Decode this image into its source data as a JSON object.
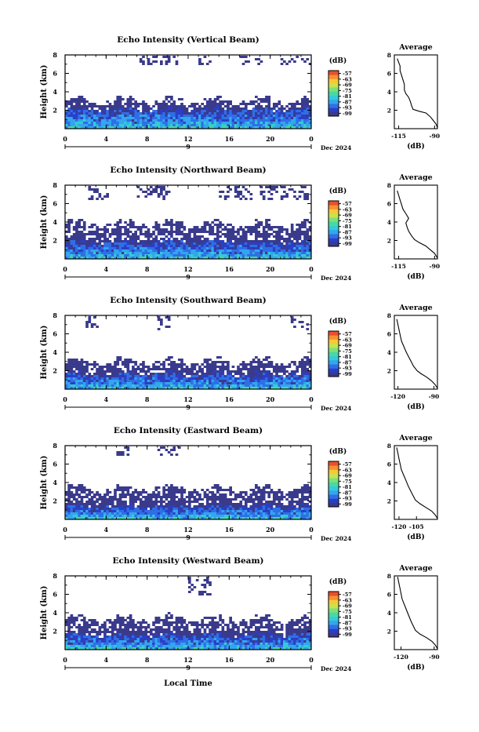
{
  "figure": {
    "x_axis_label": "Local Time",
    "colorbar_unit": "(dB)",
    "average_title": "Average",
    "average_xlabel": "(dB)"
  },
  "colors": {
    "colormap": [
      "#3a3a8c",
      "#2b3fc4",
      "#2f6fe6",
      "#33a6ee",
      "#33ccd6",
      "#49d8a3",
      "#7fe07a",
      "#c9e34b",
      "#f6c93a",
      "#f79131",
      "#e9502c"
    ],
    "trace": "#000000",
    "frame": "#000000"
  },
  "chart_data": [
    {
      "type": "heatmap",
      "title": "Echo Intensity (Vertical Beam)",
      "ylabel": "Height (km)",
      "xlim": [
        0,
        24
      ],
      "ylim": [
        0,
        8
      ],
      "x_ticks": [
        "0",
        "4",
        "8",
        "12",
        "16",
        "20",
        "0"
      ],
      "x_tick_values": [
        0,
        4,
        8,
        12,
        16,
        20,
        24
      ],
      "y_ticks": [
        "2",
        "4",
        "6",
        "8"
      ],
      "y_tick_values": [
        2,
        4,
        6,
        8
      ],
      "date_label": "9",
      "month_label": "Dec 2024",
      "colorbar": {
        "unit": "(dB)",
        "ticks": [
          "-57",
          "-63",
          "-69",
          "-75",
          "-81",
          "-87",
          "-93",
          "-99"
        ],
        "range": [
          -102,
          -54
        ]
      },
      "field": {
        "dense_top_km": 2.2,
        "sparse_top_km": 3.2,
        "cloud_ranges_km": [
          [
            6.9,
            8.0
          ]
        ],
        "cloud_hours": [
          [
            7,
            11
          ],
          [
            13,
            14
          ],
          [
            17,
            19
          ],
          [
            21,
            24
          ]
        ]
      },
      "average": {
        "title": "Average",
        "xlabel": "(dB)",
        "xlim": [
          -118,
          -88
        ],
        "ylim": [
          0,
          8
        ],
        "x_ticks": [
          "-115",
          "-90"
        ],
        "x_tick_values": [
          -115,
          -90
        ],
        "y_ticks": [
          "2",
          "4",
          "6",
          "8"
        ],
        "profile": [
          [
            -88,
            0.1
          ],
          [
            -89,
            0.5
          ],
          [
            -91,
            0.9
          ],
          [
            -93,
            1.3
          ],
          [
            -96,
            1.7
          ],
          [
            -101,
            1.9
          ],
          [
            -105,
            2.1
          ],
          [
            -106,
            2.5
          ],
          [
            -107,
            3.0
          ],
          [
            -108,
            3.4
          ],
          [
            -110,
            3.8
          ],
          [
            -111,
            4.2
          ],
          [
            -111,
            4.8
          ],
          [
            -112,
            5.3
          ],
          [
            -113,
            5.8
          ],
          [
            -114,
            6.3
          ],
          [
            -114,
            6.8
          ],
          [
            -115,
            7.2
          ],
          [
            -116,
            7.6
          ]
        ]
      }
    },
    {
      "type": "heatmap",
      "title": "Echo Intensity (Northward Beam)",
      "ylabel": "Height (km)",
      "xlim": [
        0,
        24
      ],
      "ylim": [
        0,
        8
      ],
      "x_ticks": [
        "0",
        "4",
        "8",
        "12",
        "16",
        "20",
        "0"
      ],
      "x_tick_values": [
        0,
        4,
        8,
        12,
        16,
        20,
        24
      ],
      "y_ticks": [
        "2",
        "4",
        "6",
        "8"
      ],
      "y_tick_values": [
        2,
        4,
        6,
        8
      ],
      "date_label": "9",
      "month_label": "Dec 2024",
      "colorbar": {
        "unit": "(dB)",
        "ticks": [
          "-57",
          "-63",
          "-69",
          "-75",
          "-81",
          "-87",
          "-93",
          "-99"
        ],
        "range": [
          -102,
          -54
        ]
      },
      "field": {
        "dense_top_km": 2.0,
        "sparse_top_km": 4.0,
        "cloud_ranges_km": [
          [
            6.5,
            8.0
          ]
        ],
        "cloud_hours": [
          [
            2,
            4
          ],
          [
            7,
            10
          ],
          [
            15,
            18
          ],
          [
            19,
            24
          ]
        ]
      },
      "average": {
        "title": "Average",
        "xlabel": "(dB)",
        "xlim": [
          -118,
          -88
        ],
        "ylim": [
          0,
          8
        ],
        "x_ticks": [
          "-115",
          "-90"
        ],
        "x_tick_values": [
          -115,
          -90
        ],
        "y_ticks": [
          "2",
          "4",
          "6",
          "8"
        ],
        "profile": [
          [
            -88,
            0.1
          ],
          [
            -90,
            0.6
          ],
          [
            -93,
            1.0
          ],
          [
            -96,
            1.4
          ],
          [
            -101,
            1.8
          ],
          [
            -104,
            2.1
          ],
          [
            -106,
            2.5
          ],
          [
            -108,
            3.0
          ],
          [
            -109,
            3.4
          ],
          [
            -110,
            3.9
          ],
          [
            -108,
            4.4
          ],
          [
            -110,
            4.9
          ],
          [
            -112,
            5.4
          ],
          [
            -113,
            5.9
          ],
          [
            -114,
            6.4
          ],
          [
            -115,
            6.9
          ],
          [
            -116,
            7.4
          ]
        ]
      }
    },
    {
      "type": "heatmap",
      "title": "Echo Intensity (Southward Beam)",
      "ylabel": "Height (km)",
      "xlim": [
        0,
        24
      ],
      "ylim": [
        0,
        8
      ],
      "x_ticks": [
        "0",
        "4",
        "8",
        "12",
        "16",
        "20",
        "0"
      ],
      "x_tick_values": [
        0,
        4,
        8,
        12,
        16,
        20,
        24
      ],
      "y_ticks": [
        "2",
        "4",
        "6",
        "8"
      ],
      "y_tick_values": [
        2,
        4,
        6,
        8
      ],
      "date_label": "9",
      "month_label": "Dec 2024",
      "colorbar": {
        "unit": "(dB)",
        "ticks": [
          "-57",
          "-63",
          "-69",
          "-75",
          "-81",
          "-87",
          "-93",
          "-99"
        ],
        "range": [
          -102,
          -54
        ]
      },
      "field": {
        "dense_top_km": 1.8,
        "sparse_top_km": 3.2,
        "cloud_ranges_km": [
          [
            6.6,
            8.0
          ]
        ],
        "cloud_hours": [
          [
            2,
            3
          ],
          [
            9,
            10
          ],
          [
            22,
            24
          ]
        ]
      },
      "average": {
        "title": "Average",
        "xlabel": "(dB)",
        "xlim": [
          -123,
          -87
        ],
        "ylim": [
          0,
          8
        ],
        "x_ticks": [
          "-120",
          "-90"
        ],
        "x_tick_values": [
          -120,
          -90
        ],
        "y_ticks": [
          "2",
          "4",
          "6",
          "8"
        ],
        "profile": [
          [
            -87,
            0.1
          ],
          [
            -89,
            0.5
          ],
          [
            -92,
            0.9
          ],
          [
            -96,
            1.3
          ],
          [
            -101,
            1.7
          ],
          [
            -104,
            2.0
          ],
          [
            -107,
            2.5
          ],
          [
            -109,
            3.0
          ],
          [
            -111,
            3.5
          ],
          [
            -113,
            4.0
          ],
          [
            -115,
            4.6
          ],
          [
            -117,
            5.2
          ],
          [
            -118,
            5.8
          ],
          [
            -119,
            6.4
          ],
          [
            -120,
            7.0
          ],
          [
            -121,
            7.6
          ]
        ]
      }
    },
    {
      "type": "heatmap",
      "title": "Echo Intensity (Eastward Beam)",
      "ylabel": "Height (km)",
      "xlim": [
        0,
        24
      ],
      "ylim": [
        0,
        8
      ],
      "x_ticks": [
        "0",
        "4",
        "8",
        "12",
        "16",
        "20",
        "0"
      ],
      "x_tick_values": [
        0,
        4,
        8,
        12,
        16,
        20,
        24
      ],
      "y_ticks": [
        "2",
        "4",
        "6",
        "8"
      ],
      "y_tick_values": [
        2,
        4,
        6,
        8
      ],
      "date_label": "9",
      "month_label": "Dec 2024",
      "colorbar": {
        "unit": "(dB)",
        "ticks": [
          "-57",
          "-63",
          "-69",
          "-75",
          "-81",
          "-87",
          "-93",
          "-99"
        ],
        "range": [
          -102,
          -54
        ]
      },
      "field": {
        "dense_top_km": 1.6,
        "sparse_top_km": 3.5,
        "cloud_ranges_km": [
          [
            7.0,
            8.0
          ]
        ],
        "cloud_hours": [
          [
            5,
            6
          ],
          [
            9,
            11
          ]
        ]
      },
      "average": {
        "title": "Average",
        "xlabel": "(dB)",
        "xlim": [
          -124,
          -87
        ],
        "ylim": [
          0,
          8
        ],
        "x_ticks": [
          "-120",
          "-105"
        ],
        "x_tick_values": [
          -120,
          -105
        ],
        "y_ticks": [
          "2",
          "4",
          "6",
          "8"
        ],
        "profile": [
          [
            -87,
            0.1
          ],
          [
            -89,
            0.5
          ],
          [
            -92,
            0.9
          ],
          [
            -97,
            1.3
          ],
          [
            -102,
            1.7
          ],
          [
            -106,
            2.1
          ],
          [
            -108,
            2.6
          ],
          [
            -110,
            3.1
          ],
          [
            -112,
            3.6
          ],
          [
            -114,
            4.2
          ],
          [
            -116,
            4.8
          ],
          [
            -118,
            5.4
          ],
          [
            -119,
            6.0
          ],
          [
            -120,
            6.6
          ],
          [
            -121,
            7.2
          ],
          [
            -122,
            7.8
          ]
        ]
      }
    },
    {
      "type": "heatmap",
      "title": "Echo Intensity (Westward Beam)",
      "ylabel": "Height (km)",
      "xlim": [
        0,
        24
      ],
      "ylim": [
        0,
        8
      ],
      "x_ticks": [
        "0",
        "4",
        "8",
        "12",
        "16",
        "20",
        "0"
      ],
      "x_tick_values": [
        0,
        4,
        8,
        12,
        16,
        20,
        24
      ],
      "y_ticks": [
        "2",
        "4",
        "6",
        "8"
      ],
      "y_tick_values": [
        2,
        4,
        6,
        8
      ],
      "date_label": "9",
      "month_label": "Dec 2024",
      "colorbar": {
        "unit": "(dB)",
        "ticks": [
          "-57",
          "-63",
          "-69",
          "-75",
          "-81",
          "-87",
          "-93",
          "-99"
        ],
        "range": [
          -102,
          -54
        ]
      },
      "field": {
        "dense_top_km": 1.8,
        "sparse_top_km": 3.5,
        "cloud_ranges_km": [
          [
            6.0,
            8.0
          ]
        ],
        "cloud_hours": [
          [
            12,
            14
          ]
        ]
      },
      "average": {
        "title": "Average",
        "xlabel": "(dB)",
        "xlim": [
          -126,
          -87
        ],
        "ylim": [
          0,
          8
        ],
        "x_ticks": [
          "-120",
          "-90"
        ],
        "x_tick_values": [
          -120,
          -90
        ],
        "y_ticks": [
          "2",
          "4",
          "6",
          "8"
        ],
        "profile": [
          [
            -87,
            0.1
          ],
          [
            -89,
            0.5
          ],
          [
            -92,
            0.9
          ],
          [
            -97,
            1.3
          ],
          [
            -103,
            1.7
          ],
          [
            -107,
            2.1
          ],
          [
            -109,
            2.6
          ],
          [
            -111,
            3.1
          ],
          [
            -113,
            3.7
          ],
          [
            -115,
            4.3
          ],
          [
            -117,
            4.9
          ],
          [
            -119,
            5.5
          ],
          [
            -120,
            6.1
          ],
          [
            -121,
            6.7
          ],
          [
            -122,
            7.3
          ],
          [
            -123,
            7.9
          ]
        ]
      }
    }
  ]
}
